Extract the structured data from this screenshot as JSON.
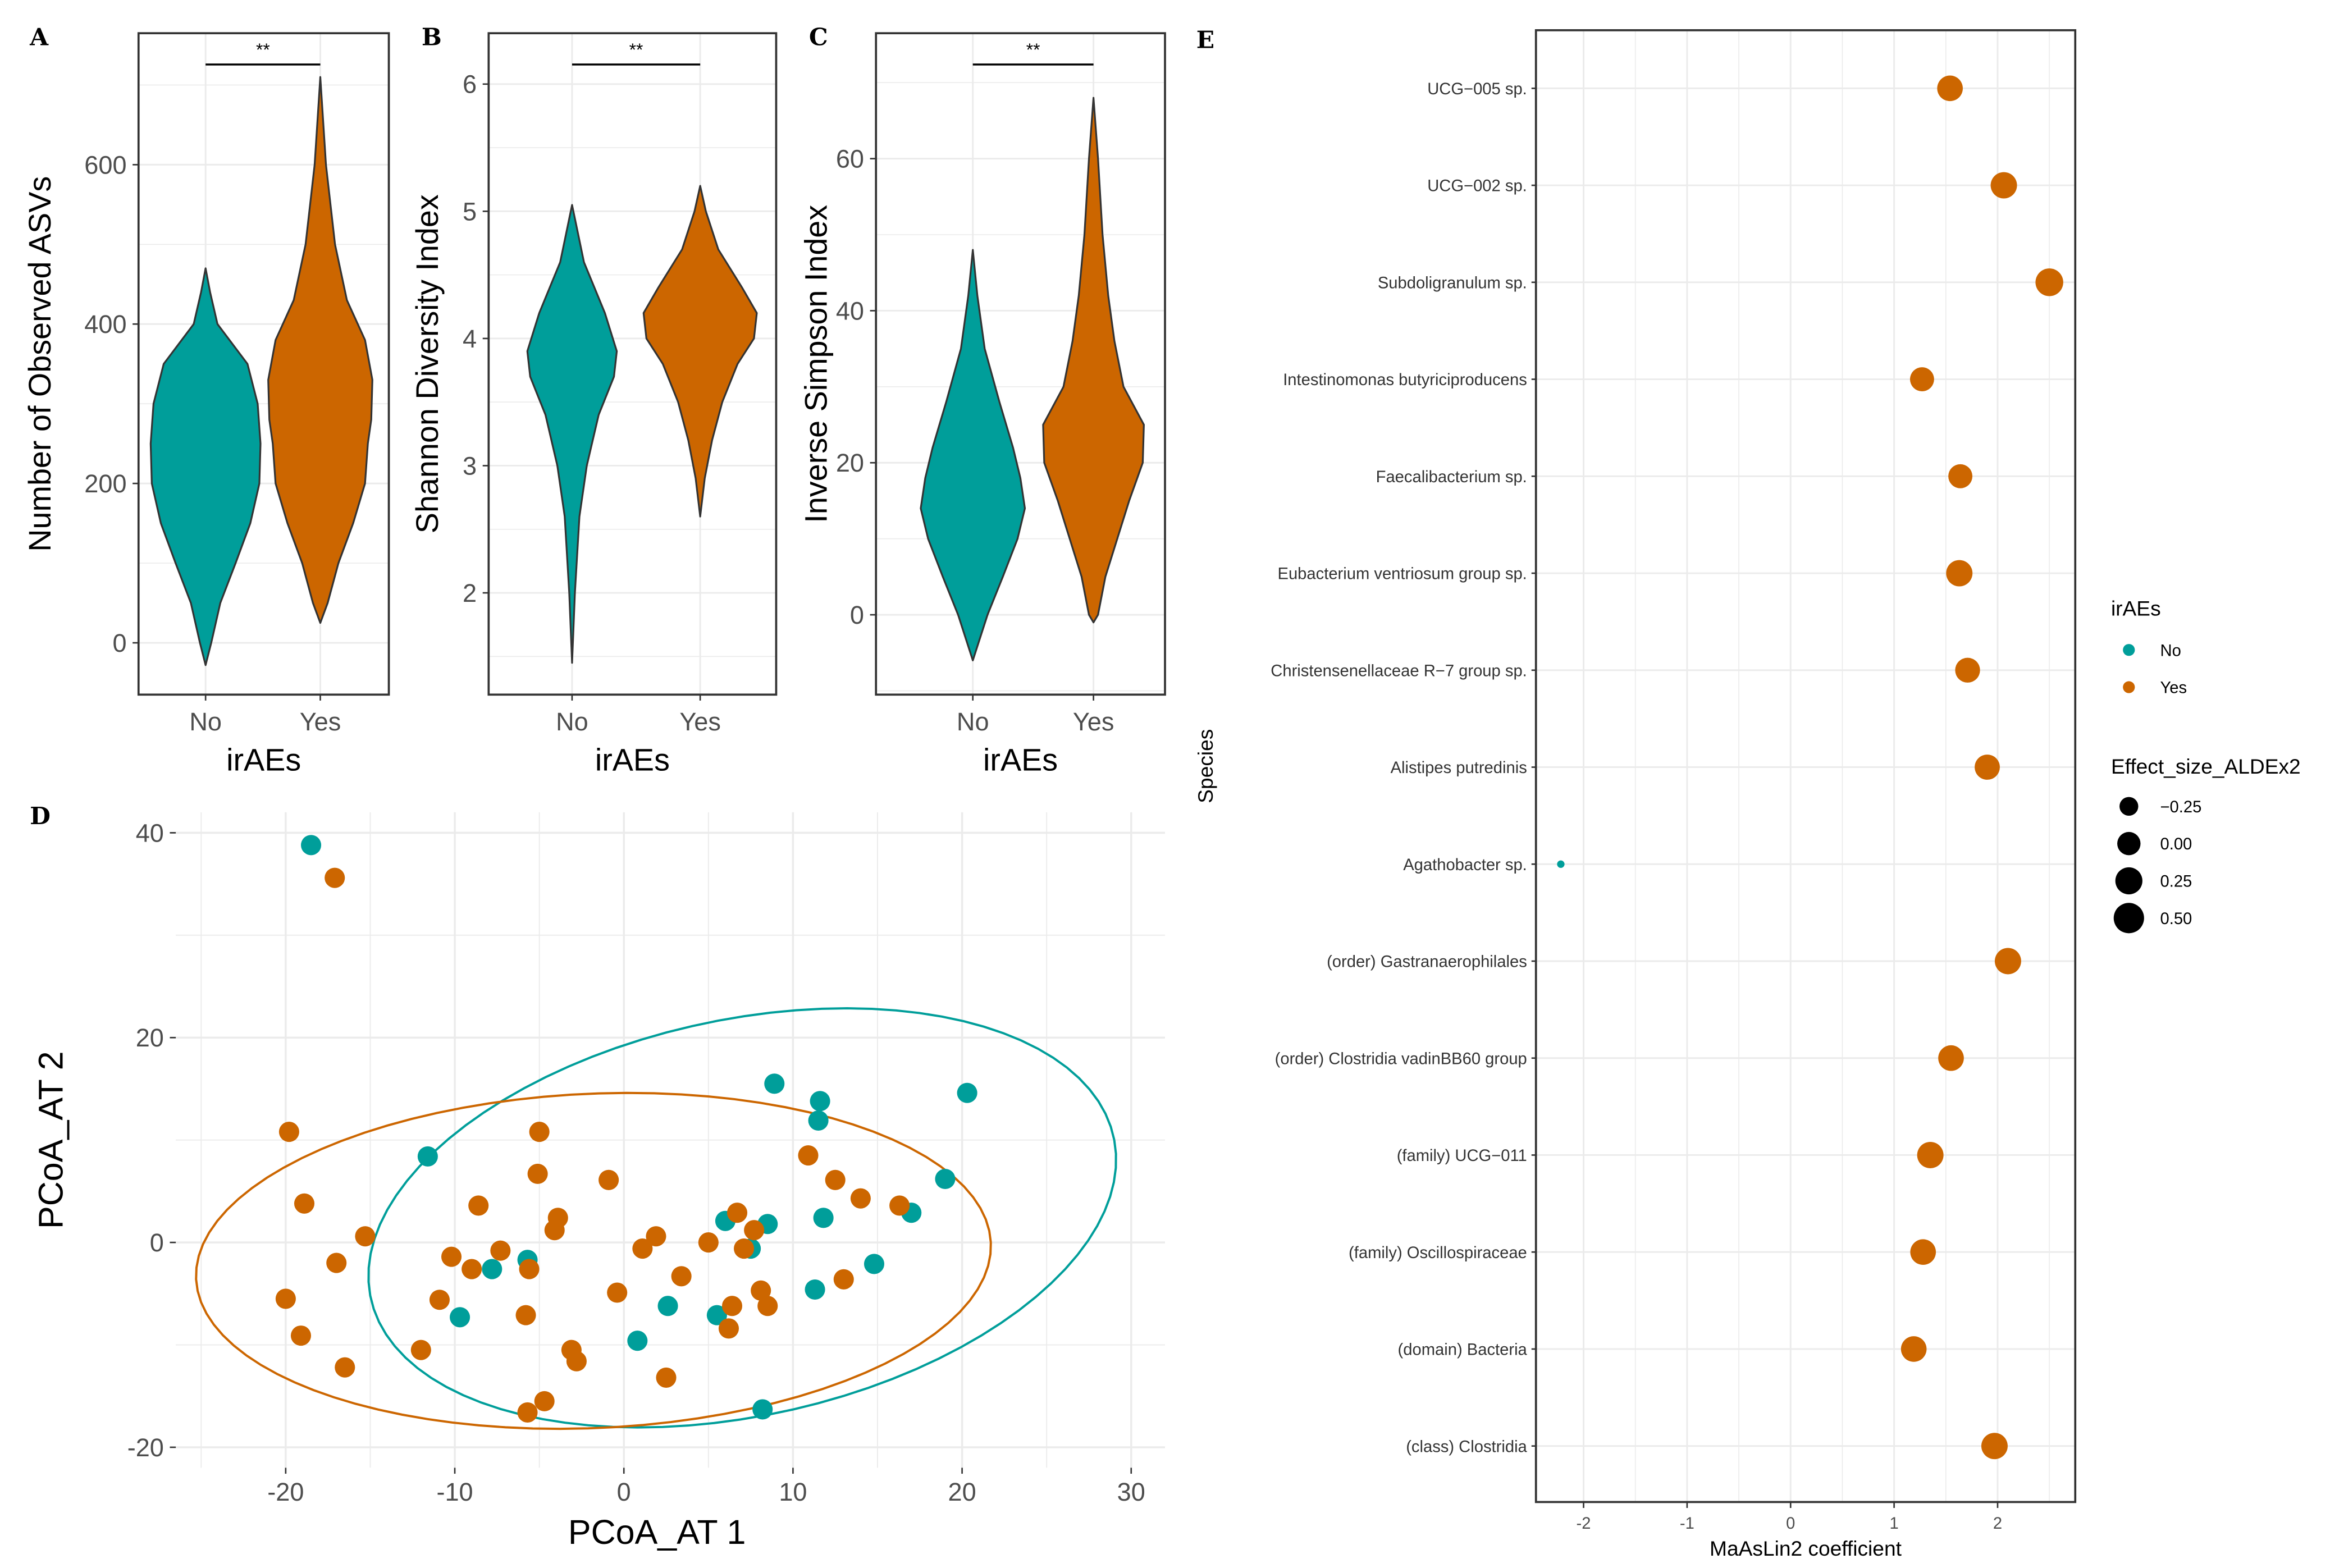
{
  "colors": {
    "No": "#009E9A",
    "Yes": "#CC6600",
    "grid": "#EBEBEB",
    "frame": "#333333"
  },
  "chart_data": [
    {
      "panel": "A",
      "type": "violin",
      "xlabel": "irAEs",
      "ylabel": "Number of Observed ASVs",
      "categories": [
        "No",
        "Yes"
      ],
      "ylim": [
        -65,
        765
      ],
      "yticks": [
        0,
        200,
        400,
        600
      ],
      "significance": "**",
      "density": {
        "No": [
          [
            -28,
            0
          ],
          [
            0,
            0.1
          ],
          [
            50,
            0.26
          ],
          [
            100,
            0.53
          ],
          [
            150,
            0.79
          ],
          [
            200,
            0.95
          ],
          [
            250,
            0.97
          ],
          [
            300,
            0.92
          ],
          [
            350,
            0.74
          ],
          [
            400,
            0.21
          ],
          [
            440,
            0.08
          ],
          [
            470,
            0
          ]
        ],
        "Yes": [
          [
            25,
            0
          ],
          [
            50,
            0.13
          ],
          [
            100,
            0.32
          ],
          [
            150,
            0.58
          ],
          [
            200,
            0.79
          ],
          [
            250,
            0.84
          ],
          [
            280,
            0.9
          ],
          [
            330,
            0.92
          ],
          [
            380,
            0.79
          ],
          [
            430,
            0.47
          ],
          [
            500,
            0.26
          ],
          [
            600,
            0.1
          ],
          [
            710,
            0
          ]
        ]
      }
    },
    {
      "panel": "B",
      "type": "violin",
      "xlabel": "irAEs",
      "ylabel": "Shannon Diversity Index",
      "categories": [
        "No",
        "Yes"
      ],
      "ylim": [
        1.2,
        6.4
      ],
      "yticks": [
        2,
        3,
        4,
        5,
        6
      ],
      "significance": "**",
      "density": {
        "No": [
          [
            1.45,
            0
          ],
          [
            2.0,
            0.05
          ],
          [
            2.6,
            0.13
          ],
          [
            3.0,
            0.26
          ],
          [
            3.4,
            0.47
          ],
          [
            3.7,
            0.74
          ],
          [
            3.9,
            0.79
          ],
          [
            4.2,
            0.58
          ],
          [
            4.6,
            0.21
          ],
          [
            5.05,
            0
          ]
        ],
        "Yes": [
          [
            2.6,
            0
          ],
          [
            2.9,
            0.08
          ],
          [
            3.2,
            0.21
          ],
          [
            3.5,
            0.39
          ],
          [
            3.8,
            0.66
          ],
          [
            4.0,
            0.95
          ],
          [
            4.2,
            1.0
          ],
          [
            4.4,
            0.74
          ],
          [
            4.7,
            0.32
          ],
          [
            5.0,
            0.1
          ],
          [
            5.2,
            0
          ]
        ]
      }
    },
    {
      "panel": "C",
      "type": "violin",
      "xlabel": "irAEs",
      "ylabel": "Inverse Simpson Index",
      "categories": [
        "No",
        "Yes"
      ],
      "ylim": [
        -10.5,
        76.5
      ],
      "yticks": [
        0,
        20,
        40,
        60
      ],
      "significance": "**",
      "density": {
        "No": [
          [
            -6,
            0
          ],
          [
            0,
            0.26
          ],
          [
            5,
            0.53
          ],
          [
            10,
            0.79
          ],
          [
            14,
            0.92
          ],
          [
            18,
            0.84
          ],
          [
            22,
            0.71
          ],
          [
            28,
            0.47
          ],
          [
            35,
            0.21
          ],
          [
            42,
            0.08
          ],
          [
            48,
            0
          ]
        ],
        "Yes": [
          [
            -1,
            0
          ],
          [
            0,
            0.08
          ],
          [
            5,
            0.21
          ],
          [
            10,
            0.42
          ],
          [
            15,
            0.63
          ],
          [
            20,
            0.87
          ],
          [
            25,
            0.89
          ],
          [
            30,
            0.53
          ],
          [
            36,
            0.37
          ],
          [
            42,
            0.26
          ],
          [
            50,
            0.16
          ],
          [
            60,
            0.08
          ],
          [
            68,
            0
          ]
        ]
      }
    },
    {
      "panel": "D",
      "type": "scatter",
      "xlabel": "PCoA_AT 1",
      "ylabel": "PCoA_AT 2",
      "xlim": [
        -26.5,
        32
      ],
      "ylim": [
        -22,
        42
      ],
      "xticks": [
        -20,
        -10,
        0,
        10,
        20,
        30
      ],
      "yticks": [
        -20,
        0,
        20,
        40
      ],
      "series": [
        {
          "name": "No",
          "points": [
            [
              -18.5,
              38.8
            ],
            [
              -11.6,
              8.4
            ],
            [
              -9.7,
              -7.3
            ],
            [
              -7.8,
              -2.6
            ],
            [
              -5.7,
              -1.7
            ],
            [
              0.8,
              -9.6
            ],
            [
              2.6,
              -6.2
            ],
            [
              5.5,
              -7.1
            ],
            [
              6.0,
              2.1
            ],
            [
              7.5,
              -0.6
            ],
            [
              8.2,
              -16.3
            ],
            [
              8.5,
              1.8
            ],
            [
              8.9,
              15.5
            ],
            [
              11.3,
              -4.6
            ],
            [
              11.5,
              11.9
            ],
            [
              11.6,
              13.8
            ],
            [
              11.8,
              2.4
            ],
            [
              14.8,
              -2.1
            ],
            [
              17.0,
              2.9
            ],
            [
              19.0,
              6.2
            ],
            [
              20.3,
              14.6
            ]
          ],
          "ellipse": {
            "center": [
              7.0,
              2.4
            ],
            "axis1": [
              22.0,
              7.6
            ],
            "axis2": [
              -2.2,
              19.0
            ]
          }
        },
        {
          "name": "Yes",
          "points": [
            [
              -17.1,
              35.6
            ],
            [
              -19.8,
              10.8
            ],
            [
              -18.9,
              3.8
            ],
            [
              -17.0,
              -2.0
            ],
            [
              -15.3,
              0.6
            ],
            [
              -20.0,
              -5.5
            ],
            [
              -19.1,
              -9.1
            ],
            [
              -16.5,
              -12.2
            ],
            [
              -12.0,
              -10.5
            ],
            [
              -10.9,
              -5.6
            ],
            [
              -10.2,
              -1.4
            ],
            [
              -9.0,
              -2.6
            ],
            [
              -8.6,
              3.6
            ],
            [
              -7.3,
              -0.8
            ],
            [
              -5.8,
              -7.1
            ],
            [
              -5.6,
              -2.6
            ],
            [
              -5.7,
              -16.6
            ],
            [
              -4.7,
              -15.5
            ],
            [
              -5.0,
              10.8
            ],
            [
              -5.1,
              6.7
            ],
            [
              -3.9,
              2.4
            ],
            [
              -4.1,
              1.2
            ],
            [
              -3.1,
              -10.5
            ],
            [
              -2.8,
              -11.6
            ],
            [
              -0.9,
              6.1
            ],
            [
              -0.4,
              -4.9
            ],
            [
              1.1,
              -0.6
            ],
            [
              1.9,
              0.6
            ],
            [
              2.5,
              -13.2
            ],
            [
              3.4,
              -3.3
            ],
            [
              5.0,
              0.0
            ],
            [
              6.2,
              -8.4
            ],
            [
              6.4,
              -6.2
            ],
            [
              6.7,
              2.9
            ],
            [
              7.1,
              -0.6
            ],
            [
              7.7,
              1.2
            ],
            [
              8.1,
              -4.7
            ],
            [
              8.5,
              -6.2
            ],
            [
              10.9,
              8.5
            ],
            [
              12.5,
              6.1
            ],
            [
              13.0,
              -3.6
            ],
            [
              14.0,
              4.3
            ],
            [
              16.3,
              3.6
            ]
          ],
          "ellipse": {
            "center": [
              -1.8,
              -1.8
            ],
            "axis1": [
              23.5,
              1.8
            ],
            "axis2": [
              -0.5,
              16.3
            ]
          }
        }
      ]
    },
    {
      "panel": "E",
      "type": "dot",
      "xlabel": "MaAsLin2 coefficient",
      "ylabel": "Species",
      "xlim": [
        -2.46,
        2.75
      ],
      "xticks": [
        -2,
        -1,
        0,
        1,
        2
      ],
      "rows": [
        {
          "species": "UCG−005 sp.",
          "coef": 1.54,
          "effect": 0.15,
          "group": "Yes"
        },
        {
          "species": "UCG−002 sp.",
          "coef": 2.06,
          "effect": 0.2,
          "group": "Yes"
        },
        {
          "species": "Subdoligranulum sp.",
          "coef": 2.5,
          "effect": 0.3,
          "group": "Yes"
        },
        {
          "species": "Intestinomonas butyriciproducens",
          "coef": 1.27,
          "effect": 0.05,
          "group": "Yes"
        },
        {
          "species": "Faecalibacterium sp.",
          "coef": 1.64,
          "effect": 0.05,
          "group": "Yes"
        },
        {
          "species": "Eubacterium ventriosum group sp.",
          "coef": 1.63,
          "effect": 0.2,
          "group": "Yes"
        },
        {
          "species": "Christensenellaceae R−7 group sp.",
          "coef": 1.71,
          "effect": 0.1,
          "group": "Yes"
        },
        {
          "species": "Alistipes putredinis",
          "coef": 1.9,
          "effect": 0.12,
          "group": "Yes"
        },
        {
          "species": "Agathobacter sp.",
          "coef": -2.22,
          "effect": -0.64,
          "group": "No"
        },
        {
          "species": "(order) Gastranaerophilales",
          "coef": 2.1,
          "effect": 0.2,
          "group": "Yes"
        },
        {
          "species": "(order) Clostridia vadinBB60 group",
          "coef": 1.55,
          "effect": 0.15,
          "group": "Yes"
        },
        {
          "species": "(family) UCG−011",
          "coef": 1.35,
          "effect": 0.2,
          "group": "Yes"
        },
        {
          "species": "(family) Oscillospiraceae",
          "coef": 1.28,
          "effect": 0.15,
          "group": "Yes"
        },
        {
          "species": "(domain) Bacteria",
          "coef": 1.19,
          "effect": 0.15,
          "group": "Yes"
        },
        {
          "species": "(class) Clostridia",
          "coef": 1.97,
          "effect": 0.2,
          "group": "Yes"
        }
      ],
      "legend": {
        "color_title": "irAEs",
        "color_entries": [
          "No",
          "Yes"
        ],
        "size_title": "Effect_size_ALDEx2",
        "size_entries": [
          {
            "label": "−0.25",
            "value": -0.25
          },
          {
            "label": "0.00",
            "value": 0
          },
          {
            "label": "0.25",
            "value": 0.25
          },
          {
            "label": "0.50",
            "value": 0.5
          }
        ],
        "placement": "right"
      }
    }
  ]
}
